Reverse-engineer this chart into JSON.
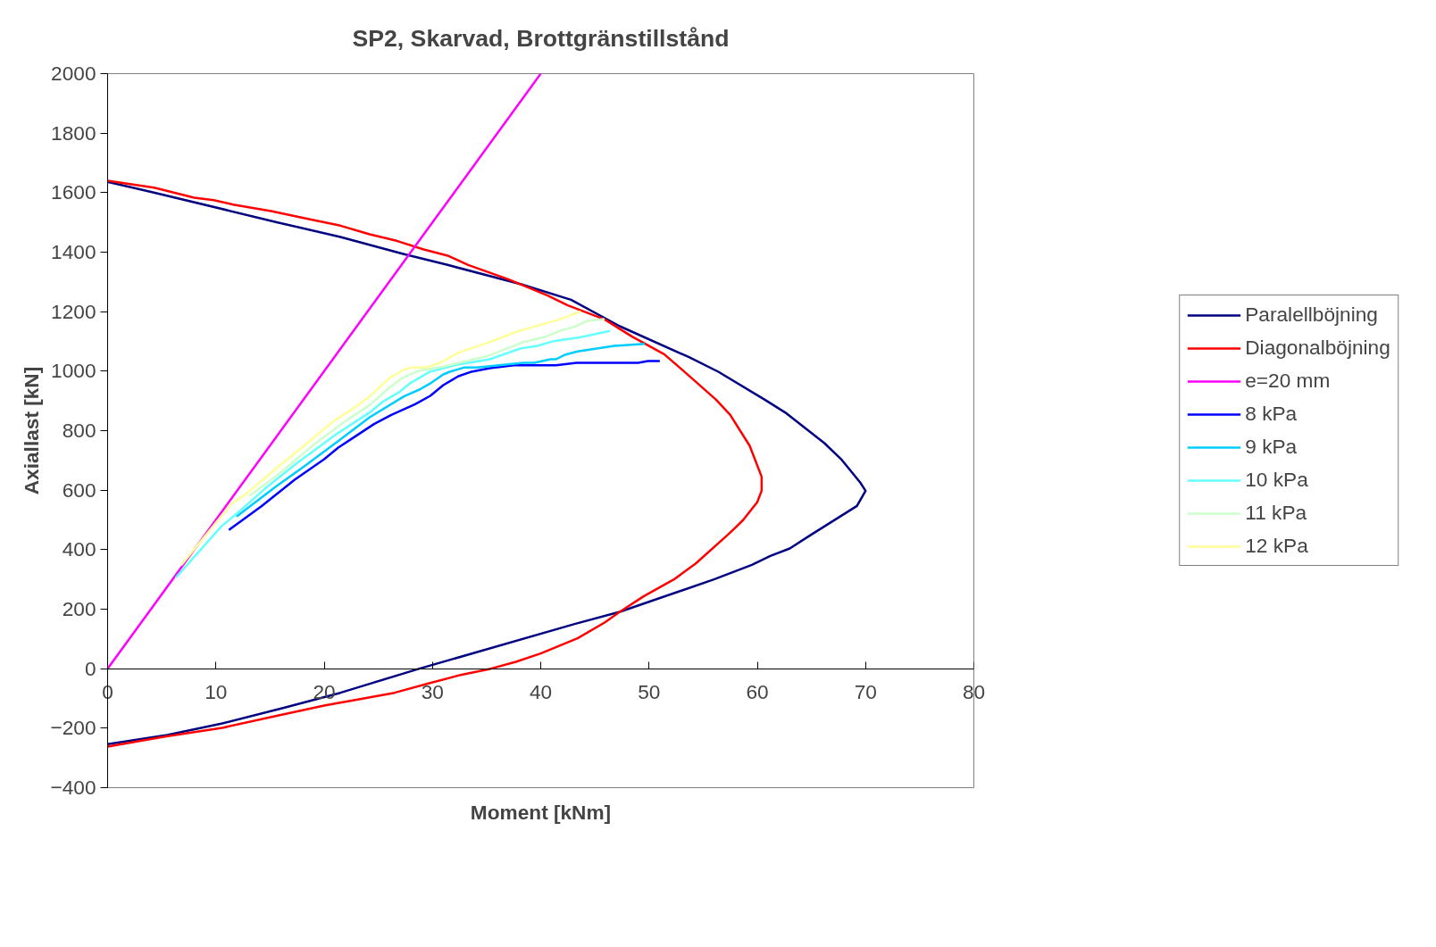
{
  "chart_data": {
    "type": "line",
    "title": "SP2, Skarvad, Brottgränstillstånd",
    "xlabel": "Moment [kNm]",
    "ylabel": "Axiallast [kN]",
    "xlim": [
      0,
      80
    ],
    "ylim": [
      -400,
      2000
    ],
    "xticks": [
      0,
      10,
      20,
      30,
      40,
      50,
      60,
      70,
      80
    ],
    "yticks": [
      -400,
      -200,
      0,
      200,
      400,
      600,
      800,
      1000,
      1200,
      1400,
      1600,
      1800,
      2000
    ],
    "grid": false,
    "legend": "right",
    "marker": "none",
    "line_style": "solid",
    "series": [
      {
        "name": "Paralellböjning",
        "color": "#000080",
        "x": [
          0,
          4.1,
          15.7,
          21.5,
          27.3,
          31.4,
          38.2,
          42.8,
          47.3,
          53.7,
          56.4,
          60.7,
          62.7,
          66.2,
          67.8,
          69.5,
          70,
          69.2,
          65,
          63,
          61.2,
          59.5,
          56,
          47.3,
          43.2,
          28.8,
          24,
          21.5,
          16.2,
          10.5,
          5.5,
          0
        ],
        "values": [
          1636,
          1602,
          1500,
          1451,
          1394,
          1357,
          1292,
          1240,
          1151,
          1047,
          998,
          904,
          858,
          758,
          702,
          626,
          598,
          547,
          451,
          404,
          379,
          349,
          300,
          191,
          151,
          0,
          -53,
          -81,
          -132,
          -185,
          -223,
          -254
        ]
      },
      {
        "name": "Diagonalböjning",
        "color": "#ff0000",
        "x": [
          0,
          4.3,
          8,
          9.8,
          11.6,
          15.1,
          18.3,
          21.5,
          24.2,
          26.7,
          29.2,
          31.5,
          33.3,
          37,
          40.6,
          42.5,
          45.9,
          48.4,
          51.4,
          53.4,
          56.2,
          57.5,
          59.3,
          60.4,
          60.4,
          60,
          58.7,
          58,
          57.3,
          54.3,
          52.3,
          49.5,
          47.3,
          45.9,
          43.4,
          40,
          37.7,
          35.4,
          32.6,
          29.7,
          26.5,
          23.1,
          20.1,
          15.8,
          10.7,
          5.3,
          0
        ],
        "values": [
          1640,
          1617,
          1583,
          1575,
          1560,
          1538,
          1513,
          1489,
          1460,
          1438,
          1409,
          1387,
          1357,
          1309,
          1255,
          1221,
          1174,
          1117,
          1057,
          994,
          904,
          853,
          749,
          645,
          598,
          560,
          500,
          475,
          451,
          353,
          300,
          243,
          191,
          155,
          102,
          51,
          23,
          0,
          -21,
          -49,
          -81,
          -104,
          -123,
          -157,
          -198,
          -228,
          -262
        ]
      },
      {
        "name": "e=20 mm",
        "color": "#ff00ff",
        "x": [
          0,
          40
        ],
        "values": [
          0,
          2000
        ]
      },
      {
        "name": "8 kPa",
        "color": "#0000ff",
        "x": [
          11.2,
          14.2,
          17.3,
          20,
          21.3,
          22.6,
          24.6,
          26.2,
          28.4,
          29.8,
          31,
          32.4,
          33.5,
          35.3,
          37.5,
          41.4,
          43.3,
          49,
          49.9,
          51
        ],
        "values": [
          466,
          546,
          636,
          704,
          743,
          774,
          822,
          853,
          889,
          917,
          953,
          983,
          997,
          1010,
          1020,
          1020,
          1028,
          1028,
          1034,
          1034
        ]
      },
      {
        "name": "9 kPa",
        "color": "#00ccff",
        "x": [
          11.9,
          15.5,
          18.3,
          21.4,
          24.2,
          27.4,
          28.8,
          29.9,
          31,
          31.6,
          32.9,
          34.1,
          38.4,
          39.4,
          40.9,
          41.4,
          42.3,
          43.4,
          46.8,
          49.6
        ],
        "values": [
          511,
          611,
          684,
          768,
          845,
          916,
          938,
          961,
          989,
          998,
          1012,
          1012,
          1028,
          1028,
          1040,
          1040,
          1056,
          1066,
          1085,
          1092
        ]
      },
      {
        "name": "10 kPa",
        "color": "#66ffff",
        "x": [
          6.3,
          10.5,
          11.7,
          14.5,
          17.6,
          21.2,
          24.2,
          25.4,
          27,
          28,
          29.7,
          32.2,
          35.3,
          38.1,
          39.7,
          41.2,
          43.7,
          46.4
        ],
        "values": [
          306,
          478,
          514,
          604,
          694,
          790,
          861,
          897,
          931,
          961,
          997,
          1021,
          1040,
          1076,
          1085,
          1101,
          1114,
          1135
        ]
      },
      {
        "name": "11 kPa",
        "color": "#ccffcc",
        "x": [
          13.1,
          16.1,
          19,
          22,
          24.2,
          26,
          27.3,
          28.8,
          31,
          35.3,
          38.4,
          40.3,
          41.9,
          43.1,
          44.3,
          45.9
        ],
        "values": [
          581,
          662,
          752,
          833,
          886,
          944,
          979,
          1002,
          1015,
          1053,
          1098,
          1114,
          1137,
          1149,
          1169,
          1175
        ]
      },
      {
        "name": "12 kPa",
        "color": "#ffff99",
        "x": [
          6.8,
          11.4,
          12.7,
          15.2,
          18,
          20.9,
          22.9,
          24.3,
          26,
          27.3,
          28,
          29.4,
          30.7,
          32.4,
          35.3,
          37.8,
          39.7,
          41.5,
          43.7
        ],
        "values": [
          348,
          553,
          585,
          662,
          745,
          833,
          880,
          918,
          976,
          1004,
          1012,
          1012,
          1028,
          1062,
          1098,
          1133,
          1153,
          1171,
          1201
        ]
      }
    ]
  }
}
